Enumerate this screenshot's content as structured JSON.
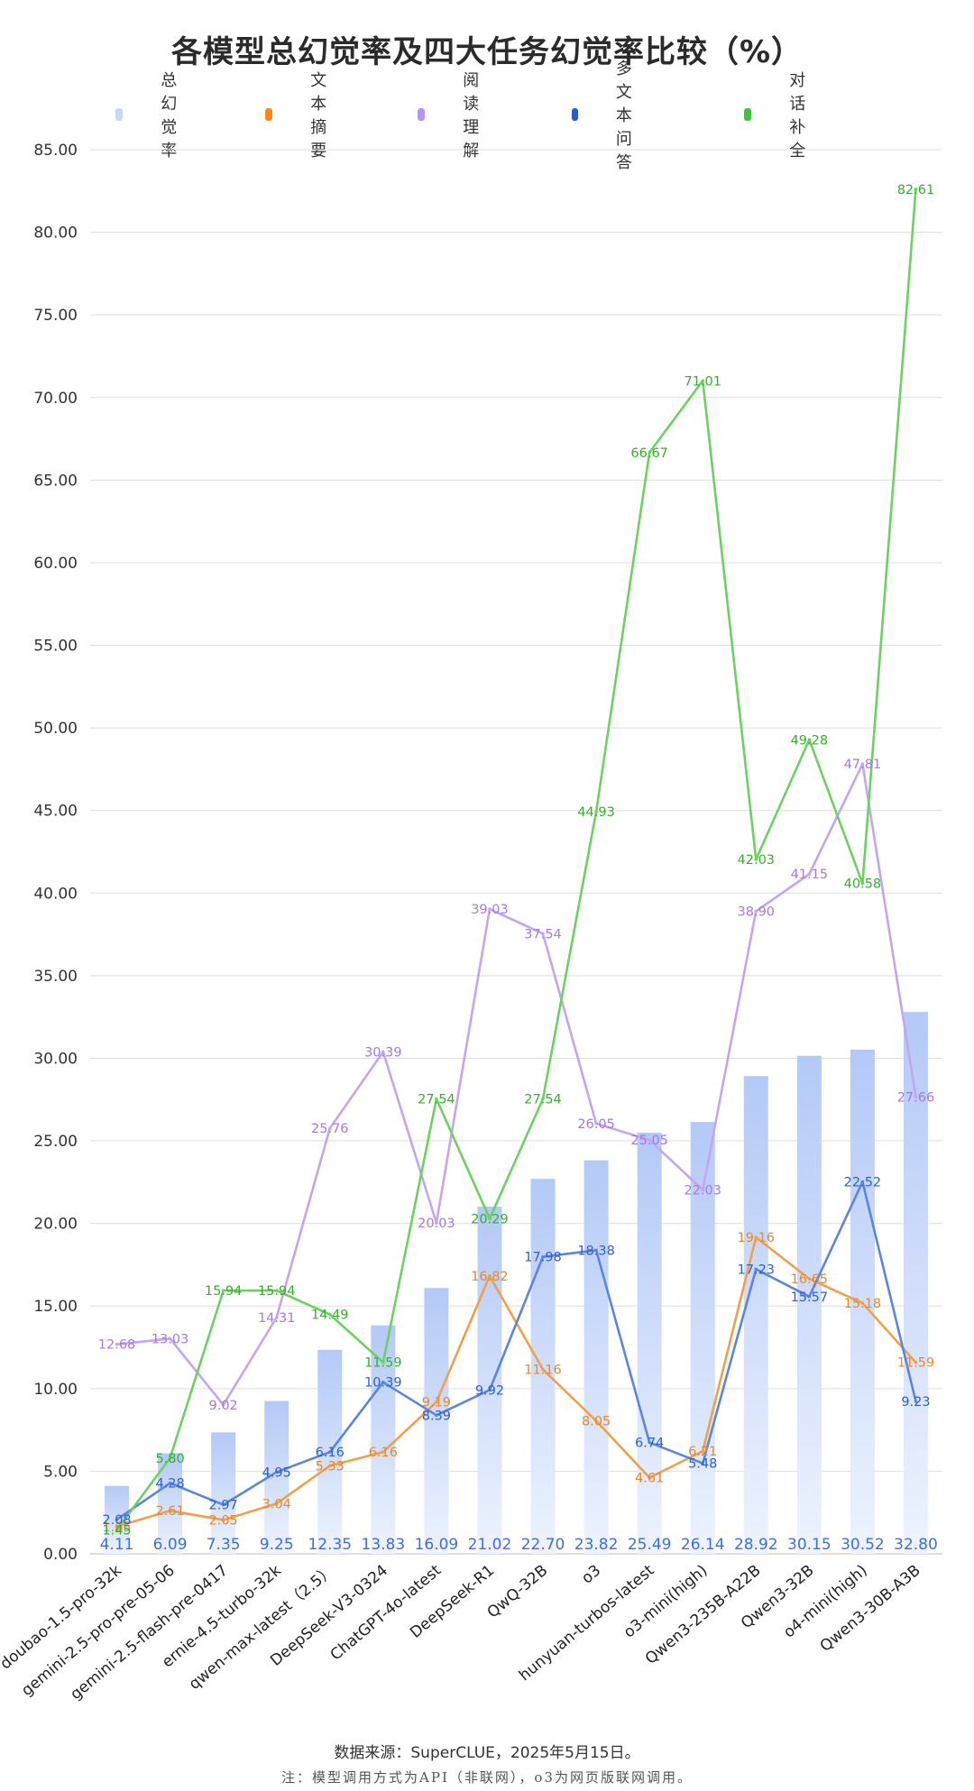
{
  "chart_data": {
    "type": "bar",
    "title": "各模型总幻觉率及四大任务幻觉率比较（%）",
    "categories": [
      "doubao-1.5-pro-32k",
      "gemini-2.5-pro-pre-05-06",
      "gemini-2.5-flash-pre-0417",
      "ernie-4.5-turbo-32k",
      "qwen-max-latest（2.5）",
      "DeepSeek-V3-0324",
      "ChatGPT-4o-latest",
      "DeepSeek-R1",
      "QwQ-32B",
      "o3",
      "hunyuan-turbos-latest",
      "o3-mini(high)",
      "Qwen3-235B-A22B",
      "Qwen3-32B",
      "o4-mini(high)",
      "Qwen3-30B-A3B"
    ],
    "ylim": [
      0,
      85
    ],
    "ytick_step": 5,
    "ytick_decimals": 2,
    "grid": true,
    "legend_position": "top",
    "series": [
      {
        "name": "总幻觉率",
        "kind": "bar",
        "color": "#b3c9f7",
        "label_color": "#3d6fe0",
        "values": [
          4.11,
          6.09,
          7.35,
          9.25,
          12.35,
          13.83,
          16.09,
          21.02,
          22.7,
          23.82,
          25.49,
          26.14,
          28.92,
          30.15,
          30.52,
          32.8
        ]
      },
      {
        "name": "文本摘要",
        "kind": "line",
        "color": "#f0a04b",
        "label_color": "#e8892a",
        "values": [
          1.65,
          2.61,
          2.05,
          3.04,
          5.33,
          6.16,
          9.19,
          16.82,
          11.16,
          8.05,
          4.61,
          6.21,
          19.16,
          16.65,
          15.18,
          11.59
        ]
      },
      {
        "name": "阅读理解",
        "kind": "line",
        "color": "#c4a5f2",
        "label_color": "#a678e8",
        "values": [
          12.68,
          13.03,
          9.02,
          14.31,
          25.76,
          30.39,
          20.03,
          39.03,
          37.54,
          26.05,
          25.05,
          22.03,
          38.9,
          41.15,
          47.81,
          27.66
        ]
      },
      {
        "name": "多文本问答",
        "kind": "line",
        "color": "#5b86e0",
        "label_color": "#2f5fd1",
        "values": [
          2.08,
          4.28,
          2.97,
          4.95,
          6.16,
          10.39,
          8.39,
          9.92,
          17.98,
          18.38,
          6.74,
          5.48,
          17.23,
          15.57,
          22.52,
          9.23
        ]
      },
      {
        "name": "对话补全",
        "kind": "line",
        "color": "#6dd062",
        "label_color": "#35b02a",
        "values": [
          1.45,
          5.8,
          15.94,
          15.94,
          14.49,
          11.59,
          27.54,
          20.29,
          27.54,
          44.93,
          66.67,
          71.01,
          42.03,
          49.28,
          40.58,
          82.61
        ]
      }
    ]
  },
  "legend": {
    "items": [
      {
        "label": "总幻觉率",
        "color": "#c8d8fa"
      },
      {
        "label": "文本摘要",
        "color": "#f5891a"
      },
      {
        "label": "阅读理解",
        "color": "#b894f2"
      },
      {
        "label": "多文本问答",
        "color": "#2a5ad8"
      },
      {
        "label": "对话补全",
        "color": "#3cc43a"
      }
    ]
  },
  "footer": {
    "source": "数据来源：SuperCLUE，2025年5月15日。",
    "note": "注：模型调用方式为API（非联网），o3为网页版联网调用。"
  }
}
